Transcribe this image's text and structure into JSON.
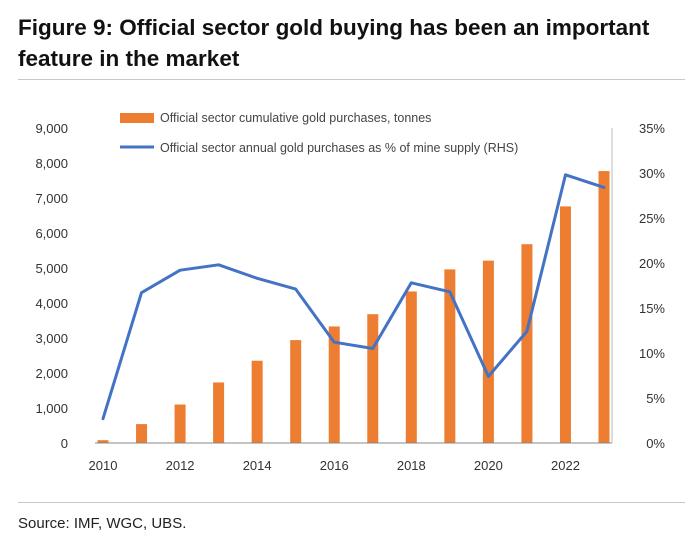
{
  "title": "Figure 9: Official sector gold buying has been an important feature in the market",
  "source": "Source: IMF, WGC, UBS.",
  "colors": {
    "bars": "#ED7D31",
    "line": "#4472C4",
    "axis": "#888888"
  },
  "chart_data": {
    "type": "bar+line",
    "x": [
      2010,
      2011,
      2012,
      2013,
      2014,
      2015,
      2016,
      2017,
      2018,
      2019,
      2020,
      2021,
      2022,
      2023
    ],
    "x_tick_labels": [
      "2010",
      "2012",
      "2014",
      "2016",
      "2018",
      "2020",
      "2022"
    ],
    "series": [
      {
        "name": "Official sector cumulative gold purchases, tonnes",
        "type": "bar",
        "axis": "left",
        "values": [
          80,
          540,
          1100,
          1730,
          2350,
          2940,
          3330,
          3680,
          4330,
          4960,
          5210,
          5680,
          6760,
          7770
        ]
      },
      {
        "name": "Official sector annual gold purchases as % of mine supply (RHS)",
        "type": "line",
        "axis": "right",
        "values": [
          2.7,
          16.7,
          19.2,
          19.8,
          18.3,
          17.1,
          11.2,
          10.5,
          17.8,
          16.8,
          7.4,
          12.4,
          29.8,
          28.4
        ]
      }
    ],
    "y_left": {
      "min": 0,
      "max": 9000,
      "step": 1000,
      "tick_labels": [
        "0",
        "1,000",
        "2,000",
        "3,000",
        "4,000",
        "5,000",
        "6,000",
        "7,000",
        "8,000",
        "9,000"
      ]
    },
    "y_right": {
      "min": 0,
      "max": 35,
      "step": 5,
      "tick_labels": [
        "0%",
        "5%",
        "10%",
        "15%",
        "20%",
        "25%",
        "30%",
        "35%"
      ]
    },
    "legend_position": "top"
  }
}
